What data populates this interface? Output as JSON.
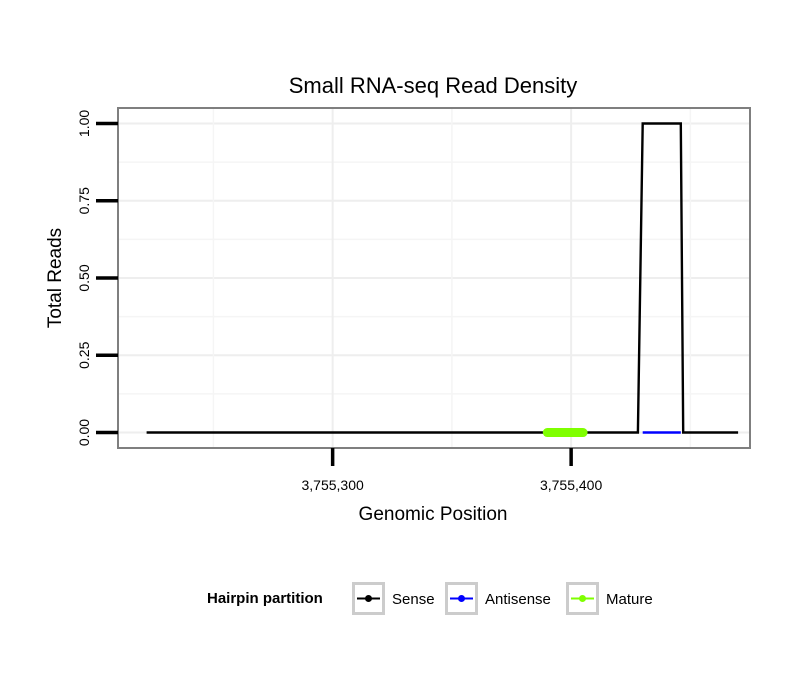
{
  "chart_data": {
    "type": "line",
    "title": "Small RNA-seq Read Density",
    "xlabel": "Genomic Position",
    "ylabel": "Total Reads",
    "xlim": [
      3755210,
      3755475
    ],
    "ylim": [
      -0.05,
      1.05
    ],
    "xticks": [
      3755300,
      3755400
    ],
    "xtick_labels": [
      "3,755,300",
      "3,755,400"
    ],
    "yticks": [
      0,
      0.25,
      0.5,
      0.75,
      1.0
    ],
    "ytick_labels": [
      "0.00",
      "0.25",
      "0.50",
      "0.75",
      "1.00"
    ],
    "grid": true,
    "legend": {
      "title": "Hairpin partition",
      "position": "bottom",
      "entries": [
        {
          "name": "Sense",
          "color": "#000000"
        },
        {
          "name": "Antisense",
          "color": "#0000ff"
        },
        {
          "name": "Mature",
          "color": "#7fff00"
        }
      ]
    },
    "series": [
      {
        "name": "Sense",
        "color": "#000000",
        "x": [
          3755222,
          3755428,
          3755430,
          3755446,
          3755447,
          3755470
        ],
        "y": [
          0,
          0,
          1,
          1,
          0,
          0
        ]
      },
      {
        "name": "Antisense",
        "color": "#0000ff",
        "x": [
          3755430,
          3755446
        ],
        "y": [
          0,
          0
        ]
      },
      {
        "name": "Mature",
        "color": "#7fff00",
        "x": [
          3755390,
          3755405
        ],
        "y": [
          0,
          0
        ]
      }
    ]
  }
}
